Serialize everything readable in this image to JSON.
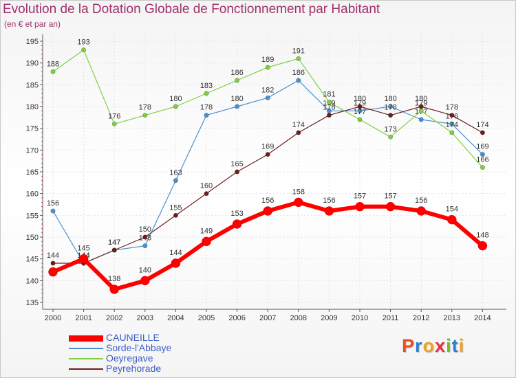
{
  "header": {
    "title": "Evolution de la Dotation Globale de Fonctionnement par Habitant",
    "subtitle": "(en € et par an)"
  },
  "logo": {
    "letters": [
      "P",
      "r",
      "o",
      "x",
      "i",
      "t",
      "i"
    ],
    "colors": [
      "#e8501e",
      "#2a7dd8",
      "#f0a020",
      "#e83040",
      "#7ab82a",
      "#2a7dd8",
      "#f0a020"
    ]
  },
  "chart_data": {
    "type": "line",
    "x": [
      "2000",
      "2001",
      "2002",
      "2003",
      "2004",
      "2005",
      "2006",
      "2007",
      "2008",
      "2009",
      "2010",
      "2011",
      "2012",
      "2013",
      "2014"
    ],
    "ylim": [
      135,
      195
    ],
    "yticks": [
      135,
      140,
      145,
      150,
      155,
      160,
      165,
      170,
      175,
      180,
      185,
      190,
      195
    ],
    "grid": true,
    "legend_position": "bottom-left",
    "series": [
      {
        "name": "CAUNEILLE",
        "color": "#ff0000",
        "values": [
          142,
          145,
          138,
          140,
          144,
          149,
          153,
          156,
          158,
          156,
          157,
          157,
          156,
          154,
          148
        ],
        "labels": [
          "",
          "145",
          "138",
          "140",
          "144",
          "149",
          "153",
          "156",
          "158",
          "156",
          "157",
          "157",
          "156",
          "154",
          "148"
        ]
      },
      {
        "name": "Sorde-l'Abbaye",
        "color": "#4a90d0",
        "values": [
          156,
          144,
          147,
          148,
          163,
          178,
          180,
          182,
          186,
          179,
          179,
          180,
          177,
          176,
          169
        ],
        "labels": [
          "156",
          "144",
          "147",
          "148",
          "163",
          "178",
          "180",
          "182",
          "186",
          "179",
          "179",
          "180",
          "177",
          "176",
          "169"
        ]
      },
      {
        "name": "Oeyregave",
        "color": "#7fd040",
        "values": [
          188,
          193,
          176,
          178,
          180,
          183,
          186,
          189,
          191,
          181,
          177,
          173,
          179,
          174,
          166
        ],
        "labels": [
          "188",
          "193",
          "176",
          "178",
          "180",
          "183",
          "186",
          "189",
          "191",
          "181",
          "177",
          "173",
          "179",
          "174",
          "166"
        ]
      },
      {
        "name": "Peyrehorade",
        "color": "#6b1f1f",
        "values": [
          144,
          144,
          147,
          150,
          155,
          160,
          165,
          169,
          174,
          178,
          180,
          178,
          180,
          178,
          174
        ],
        "labels": [
          "144",
          "144",
          "147",
          "150",
          "155",
          "160",
          "165",
          "169",
          "174",
          "178",
          "180",
          "178",
          "180",
          "178",
          "174"
        ]
      }
    ]
  }
}
